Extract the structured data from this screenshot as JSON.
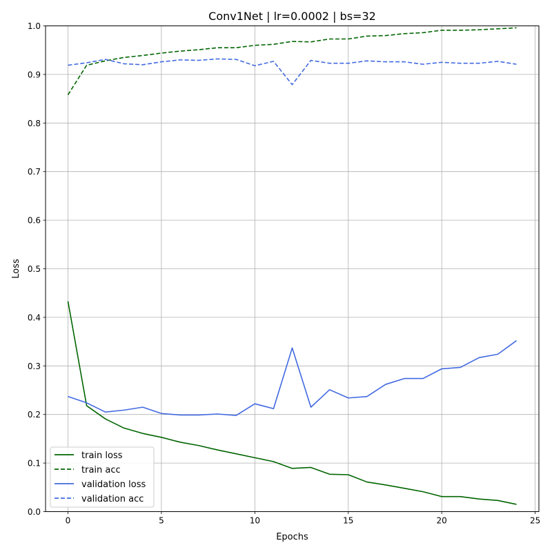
{
  "chart_data": {
    "type": "line",
    "title": "Conv1Net | lr=0.0002 | bs=32",
    "xlabel": "Epochs",
    "ylabel": "Loss",
    "xlim": [
      -1.2,
      25.2
    ],
    "ylim": [
      0.0,
      1.0
    ],
    "xticks": [
      0,
      5,
      10,
      15,
      20,
      25
    ],
    "yticks": [
      0.0,
      0.1,
      0.2,
      0.3,
      0.4,
      0.5,
      0.6,
      0.7,
      0.8,
      0.9,
      1.0
    ],
    "xtick_labels": [
      "0",
      "5",
      "10",
      "15",
      "20",
      "25"
    ],
    "ytick_labels": [
      "0.0",
      "0.1",
      "0.2",
      "0.3",
      "0.4",
      "0.5",
      "0.6",
      "0.7",
      "0.8",
      "0.9",
      "1.0"
    ],
    "grid": true,
    "legend_position": "lower-left",
    "x": [
      0,
      1,
      2,
      3,
      4,
      5,
      6,
      7,
      8,
      9,
      10,
      11,
      12,
      13,
      14,
      15,
      16,
      17,
      18,
      19,
      20,
      21,
      22,
      23,
      24
    ],
    "series": [
      {
        "name": "train loss",
        "color": "#006400",
        "dash": "solid",
        "values": [
          0.433,
          0.218,
          0.191,
          0.172,
          0.161,
          0.153,
          0.143,
          0.136,
          0.127,
          0.119,
          0.111,
          0.103,
          0.089,
          0.091,
          0.077,
          0.076,
          0.061,
          0.055,
          0.048,
          0.041,
          0.031,
          0.031,
          0.026,
          0.023,
          0.015
        ]
      },
      {
        "name": "train acc",
        "color": "#006400",
        "dash": "dashed",
        "values": [
          0.858,
          0.919,
          0.928,
          0.935,
          0.939,
          0.944,
          0.948,
          0.951,
          0.955,
          0.955,
          0.96,
          0.962,
          0.968,
          0.967,
          0.973,
          0.973,
          0.979,
          0.98,
          0.984,
          0.986,
          0.991,
          0.991,
          0.992,
          0.994,
          0.996
        ]
      },
      {
        "name": "validation loss",
        "color": "#4169e1",
        "dash": "solid",
        "values": [
          0.237,
          0.224,
          0.205,
          0.209,
          0.215,
          0.202,
          0.199,
          0.199,
          0.201,
          0.198,
          0.222,
          0.212,
          0.337,
          0.215,
          0.251,
          0.234,
          0.237,
          0.262,
          0.274,
          0.274,
          0.294,
          0.297,
          0.317,
          0.324,
          0.352
        ]
      },
      {
        "name": "validation acc",
        "color": "#4169e1",
        "dash": "dashed",
        "values": [
          0.919,
          0.924,
          0.931,
          0.922,
          0.92,
          0.926,
          0.93,
          0.929,
          0.932,
          0.931,
          0.918,
          0.927,
          0.879,
          0.929,
          0.923,
          0.923,
          0.928,
          0.926,
          0.926,
          0.921,
          0.925,
          0.923,
          0.923,
          0.927,
          0.921
        ]
      }
    ]
  }
}
